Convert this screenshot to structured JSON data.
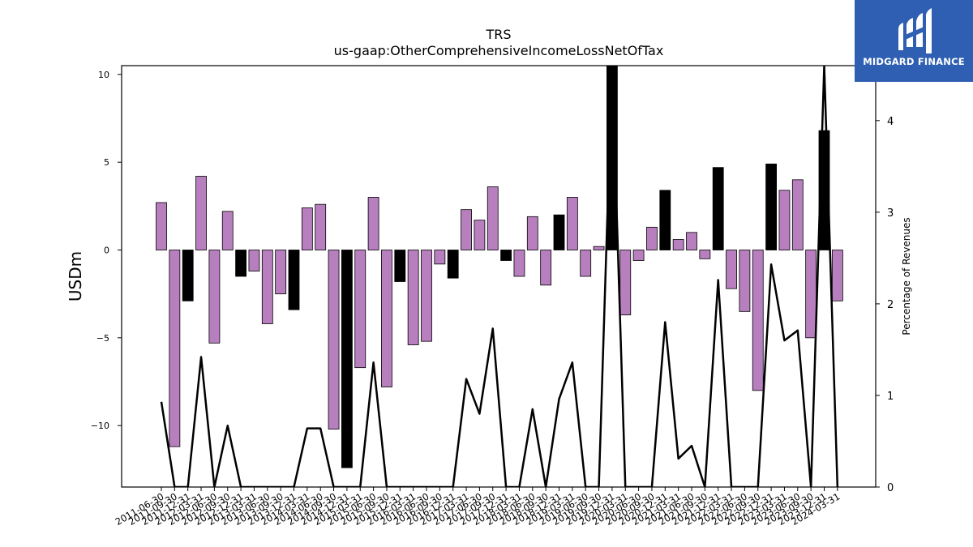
{
  "chart_data": {
    "type": "bar",
    "title": "TRS",
    "subtitle": "us-gaap:OtherComprehensiveIncomeLossNetOfTax",
    "ylabel": "USDm",
    "y2label": "Percentage of Revenues",
    "ylim": [
      -13.5,
      10.5
    ],
    "y2lim": [
      0,
      4.6
    ],
    "yticks": [
      10,
      5,
      0,
      -5,
      -10
    ],
    "y2ticks": [
      4,
      3,
      2,
      1,
      0
    ],
    "categories": [
      "2011-06-30",
      "2011-09-30",
      "2011-12-31",
      "2012-03-31",
      "2012-06-30",
      "2012-09-30",
      "2012-12-31",
      "2013-03-31",
      "2013-06-30",
      "2013-09-30",
      "2013-12-31",
      "2014-03-31",
      "2014-06-30",
      "2014-09-30",
      "2014-12-31",
      "2015-03-31",
      "2015-06-30",
      "2015-09-30",
      "2015-12-31",
      "2016-03-31",
      "2016-06-30",
      "2016-09-30",
      "2016-12-31",
      "2017-03-31",
      "2017-06-30",
      "2017-09-30",
      "2017-12-31",
      "2018-03-31",
      "2018-06-30",
      "2018-09-30",
      "2018-12-31",
      "2019-03-31",
      "2019-06-30",
      "2019-09-30",
      "2019-12-31",
      "2020-03-31",
      "2020-06-30",
      "2020-09-30",
      "2020-12-31",
      "2021-03-31",
      "2021-06-30",
      "2021-09-30",
      "2021-12-31",
      "2022-03-31",
      "2022-06-30",
      "2022-09-30",
      "2022-12-31",
      "2023-03-31",
      "2023-06-30",
      "2023-09-30",
      "2023-12-31",
      "2024-03-31"
    ],
    "series": [
      {
        "type": "bar",
        "values": [
          2.7,
          -11.2,
          -2.9,
          4.2,
          -5.3,
          2.2,
          -1.5,
          -1.2,
          -4.2,
          -2.5,
          -3.4,
          2.4,
          2.6,
          -10.2,
          -12.4,
          -6.7,
          3.0,
          -7.8,
          -1.8,
          -5.4,
          -5.2,
          -0.8,
          -1.6,
          2.3,
          1.7,
          3.6,
          -0.6,
          -1.5,
          1.9,
          -2.0,
          2.0,
          3.0,
          -1.5,
          0.2,
          10.5,
          -3.7,
          -0.6,
          1.3,
          3.4,
          0.6,
          1.0,
          -0.5,
          4.7,
          -2.2,
          -3.5,
          -8.0,
          4.9,
          3.4,
          4.0,
          -5.0,
          6.8,
          -2.9
        ],
        "highlight": [
          false,
          false,
          true,
          false,
          false,
          false,
          true,
          false,
          false,
          false,
          true,
          false,
          false,
          false,
          true,
          false,
          false,
          false,
          true,
          false,
          false,
          false,
          true,
          false,
          false,
          false,
          true,
          false,
          false,
          false,
          true,
          false,
          false,
          false,
          true,
          false,
          false,
          false,
          true,
          false,
          false,
          false,
          true,
          false,
          false,
          false,
          true,
          false,
          false,
          false,
          true,
          false
        ]
      },
      {
        "type": "line",
        "axis": "right",
        "values": [
          0.93,
          0,
          0,
          1.42,
          0,
          0.67,
          0,
          0,
          0,
          0,
          0,
          0.64,
          0.64,
          0,
          0,
          0,
          1.36,
          0,
          0,
          0,
          0,
          0,
          0,
          1.18,
          0.8,
          1.73,
          0,
          0,
          0.85,
          0,
          0.96,
          1.36,
          0,
          0,
          4.6,
          0,
          0,
          0,
          1.8,
          0.31,
          0.45,
          0,
          2.26,
          0,
          0,
          0,
          2.43,
          1.6,
          1.71,
          0,
          4.6,
          0
        ]
      }
    ],
    "colors": {
      "bar": "#b87fbf",
      "bar_highlight": "#000000",
      "line": "#000000",
      "logo_bg": "#2f5fb3"
    }
  },
  "logo": {
    "text": "MIDGARD FINANCE"
  }
}
